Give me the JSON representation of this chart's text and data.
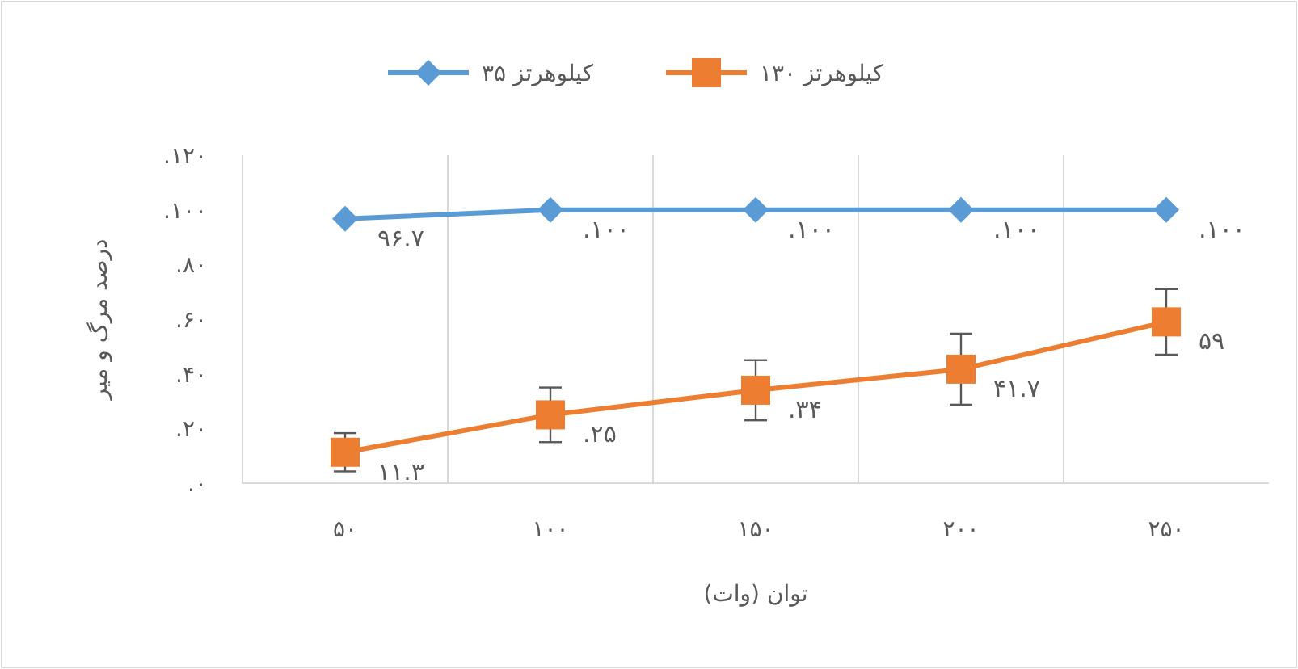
{
  "chart_data": {
    "type": "line",
    "xlabel": "توان (وات)",
    "ylabel": "درصد مرگ و میر",
    "categories": [
      "۵۰",
      "۱۰۰",
      "۱۵۰",
      "۲۰۰",
      "۲۵۰"
    ],
    "series": [
      {
        "name": "۳۵ کیلوهرتز",
        "color": "#5b9bd5",
        "marker": "diamond",
        "values": [
          96.7,
          100,
          100,
          100,
          100
        ],
        "value_labels": [
          "۹۶.۷",
          "۱۰۰.",
          "۱۰۰.",
          "۱۰۰.",
          "۱۰۰."
        ]
      },
      {
        "name": "۱۳۰ کیلوهرتز",
        "color": "#ed7d31",
        "marker": "square",
        "values": [
          11.3,
          25,
          34,
          41.7,
          59
        ],
        "errors": [
          7,
          10,
          11,
          13,
          12
        ],
        "value_labels": [
          "۱۱.۳",
          "۲۵.",
          "۳۴.",
          "۴۱.۷",
          "۵۹"
        ]
      }
    ],
    "ylim": [
      0,
      120
    ],
    "yticks": [
      {
        "value": 0,
        "label": "۰."
      },
      {
        "value": 20,
        "label": "۲۰."
      },
      {
        "value": 40,
        "label": "۴۰."
      },
      {
        "value": 60,
        "label": "۶۰."
      },
      {
        "value": 80,
        "label": "۸۰."
      },
      {
        "value": 100,
        "label": "۱۰۰."
      },
      {
        "value": 120,
        "label": "۱۲۰."
      }
    ],
    "grid": "x",
    "legend": "top",
    "line_style": "solid"
  }
}
